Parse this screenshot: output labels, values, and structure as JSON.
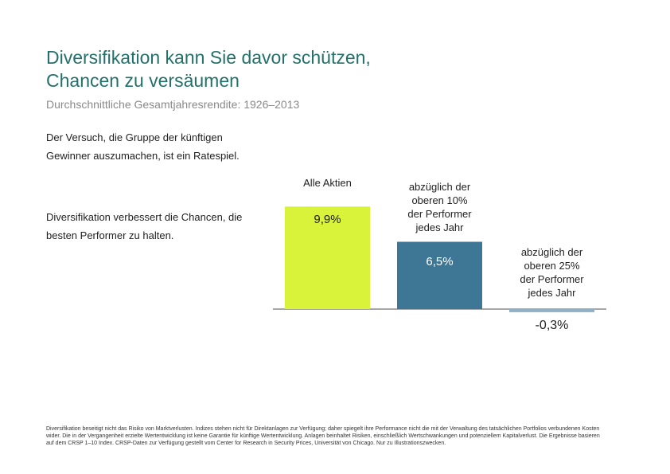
{
  "title_line1": "Diversifikation kann Sie davor schützen,",
  "title_line2": "Chancen zu versäumen",
  "subtitle": "Durchschnittliche Gesamtjahresrendite: 1926–2013",
  "note1": "Der Versuch, die Gruppe der künftigen Gewinner auszumachen, ist ein Ratespiel.",
  "note2": "Diversifikation verbessert die Chancen, die besten Performer zu halten.",
  "footnote": "Diversifikation beseitigt nicht das Risiko von Marktverlusten. Indizes stehen nicht für Direktanlagen zur Verfügung; daher spiegelt ihre Performance nicht die mit der Verwaltung des tatsächlichen Portfolios verbundenen Kosten wider. Die in der Vergangenheit erzielte Wertentwicklung ist keine Garantie für künftige Wertentwicklung. Anlagen beinhaltet Risiken, einschließlich Wertschwankungen und potenziellem Kapitalverlust. Die Ergebnisse basieren auf dem CRSP 1–10 Index. CRSP-Daten zur Verfügung gestellt vom Center for Research in Security Prices, Universität von Chicago. Nur zu Illustrationszwecken.",
  "chart_data": {
    "type": "bar",
    "title": "Durchschnittliche Gesamtjahresrendite: 1926–2013",
    "categories": [
      "Alle Aktien",
      "abzüglich der oberen 10% der Performer jedes Jahr",
      "abzüglich der oberen 25% der Performer jedes Jahr"
    ],
    "category_lines": [
      [
        "Alle Aktien"
      ],
      [
        "abzüglich der",
        "oberen 10%",
        "der Performer",
        "jedes Jahr"
      ],
      [
        "abzüglich der",
        "oberen 25%",
        "der Performer",
        "jedes Jahr"
      ]
    ],
    "values": [
      9.9,
      6.5,
      -0.3
    ],
    "value_labels": [
      "9,9%",
      "6,5%",
      "-0,3%"
    ],
    "colors": [
      "#d9f23a",
      "#3e7795",
      "#8fb0c4"
    ],
    "unit": "%",
    "xlabel": "",
    "ylabel": "",
    "grid": false
  }
}
